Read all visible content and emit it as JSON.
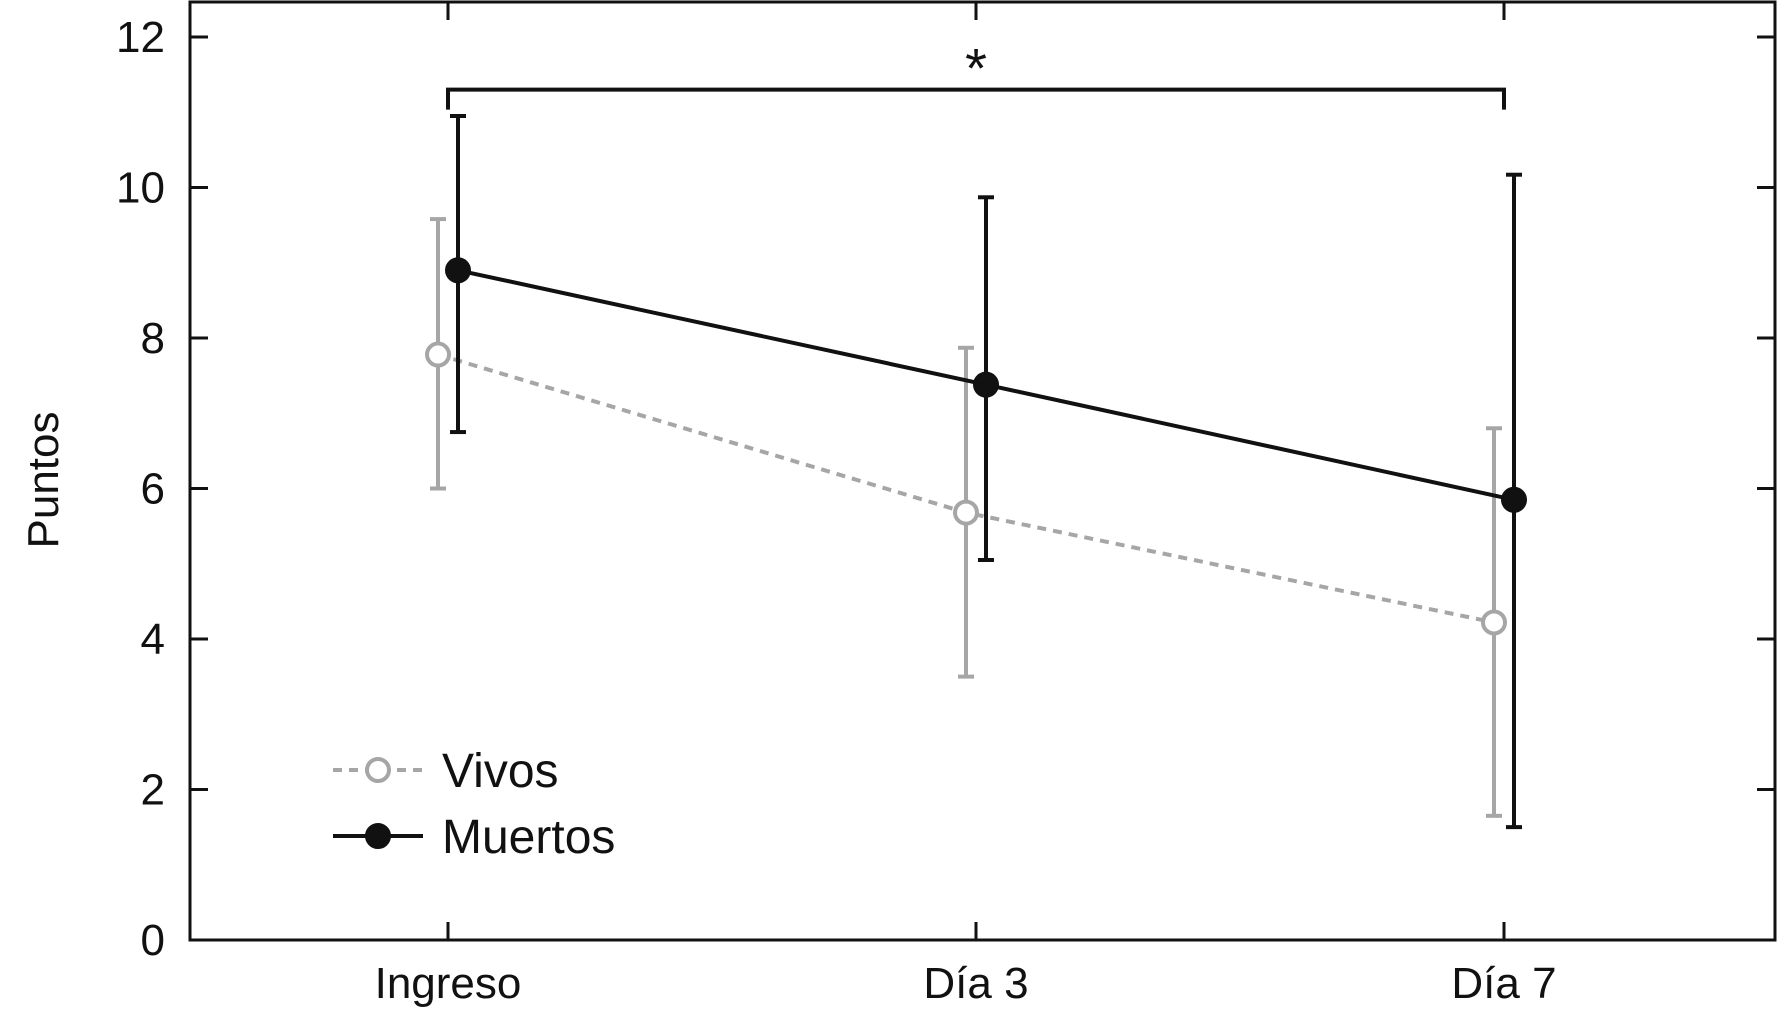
{
  "chart_data": {
    "type": "line",
    "title": "",
    "xlabel": "",
    "ylabel": "Puntos",
    "categories": [
      "Ingreso",
      "Día 3",
      "Día 7"
    ],
    "ylim": [
      0,
      12
    ],
    "yticks": [
      0,
      2,
      4,
      6,
      8,
      10,
      12
    ],
    "ytick_labels": [
      "0",
      "2",
      "4",
      "6",
      "8",
      "10",
      "12"
    ],
    "grid": false,
    "legend_position": "bottom-left",
    "series": [
      {
        "name": "Vivos",
        "values": [
          7.78,
          5.68,
          4.22
        ],
        "error_low": [
          6.0,
          3.5,
          1.65
        ],
        "error_high": [
          9.58,
          7.87,
          6.8
        ],
        "color": "#a6a6a6",
        "line_style": "dotted",
        "marker": "open-circle"
      },
      {
        "name": "Muertos",
        "values": [
          8.9,
          7.38,
          5.85
        ],
        "error_low": [
          6.75,
          5.05,
          1.5
        ],
        "error_high": [
          10.95,
          9.87,
          10.17
        ],
        "color": "#111111",
        "line_style": "solid",
        "marker": "filled-circle"
      }
    ],
    "annotations": [
      {
        "type": "significance-bracket",
        "from": "Ingreso",
        "to": "Día 7",
        "y": 11.3,
        "label": "*"
      }
    ]
  }
}
